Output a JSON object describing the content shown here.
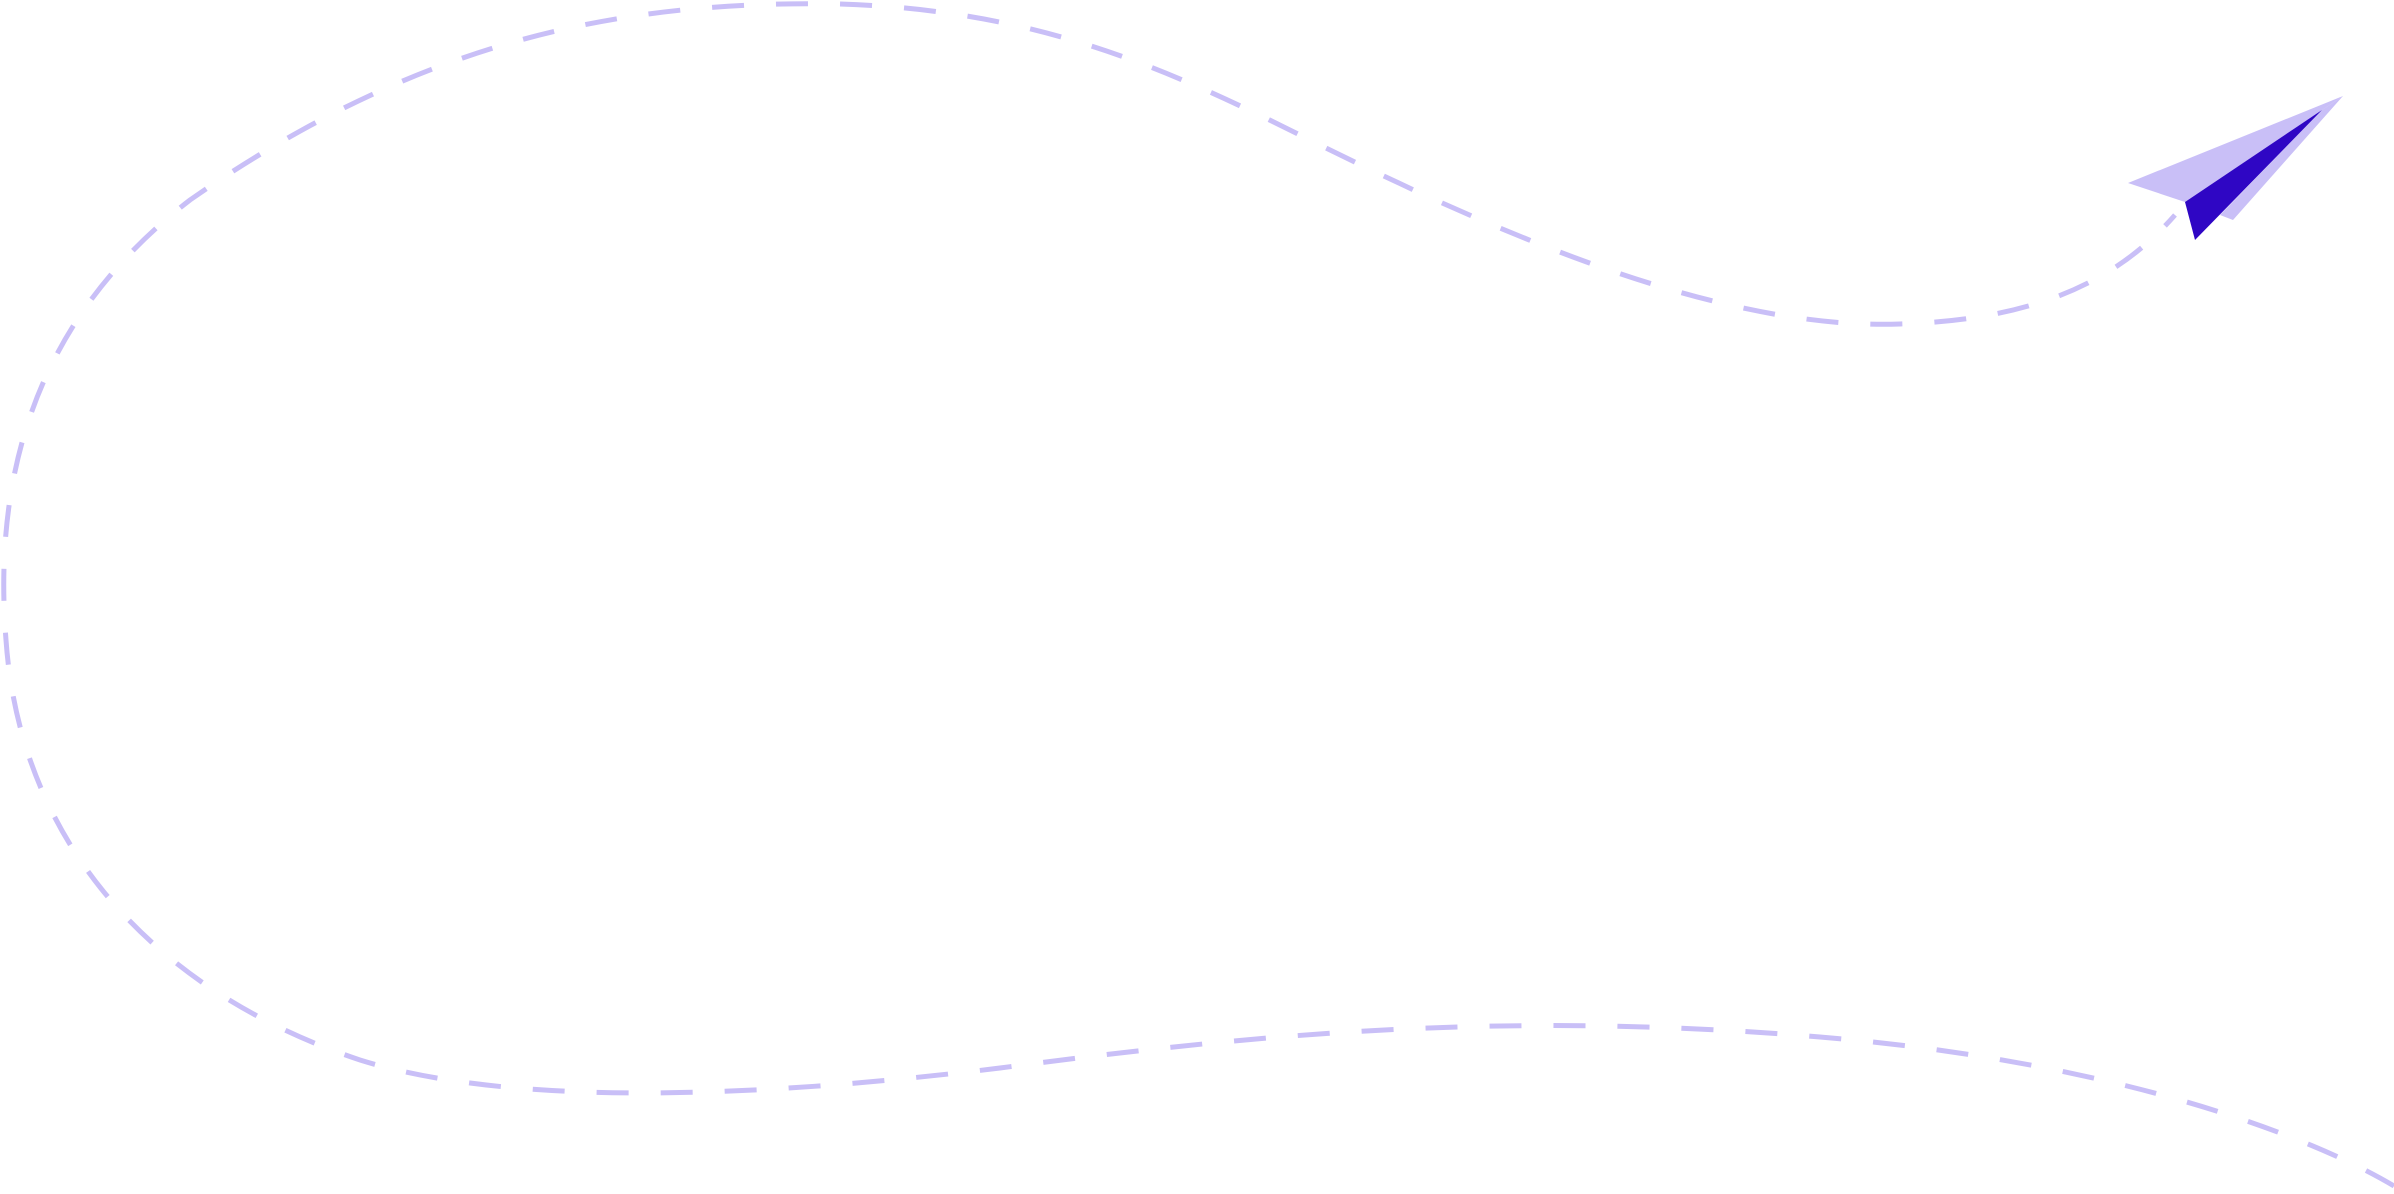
{
  "illustration": {
    "description_icon": "paper-plane-icon",
    "colors": {
      "trail": "#C9BFF7",
      "plane_light": "#C9BFF7",
      "plane_dark": "#2F06C4",
      "background": "#FFFFFF"
    }
  }
}
